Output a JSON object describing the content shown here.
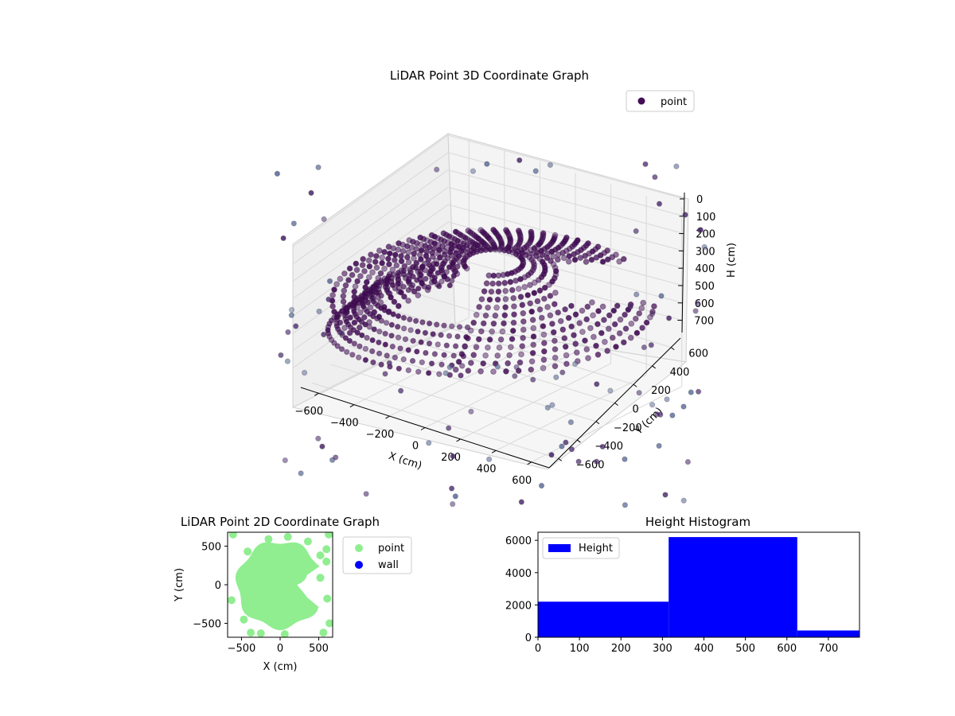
{
  "colors": {
    "scatter3d": "#440e57",
    "scatter3d_light": "#5d6d9a",
    "point2d": "#90ee90",
    "wall2d": "#0000ff",
    "hist": "#0000ff",
    "pane": "#f2f2f2",
    "grid": "#d9d9d9"
  },
  "chart_data": [
    {
      "type": "scatter",
      "title": "LiDAR Point 3D Coordinate Graph",
      "xlabel": "X (cm)",
      "ylabel": "Y (cm)",
      "zlabel": "H (cm)",
      "xticks": [
        "−600",
        "−400",
        "−200",
        "0",
        "200",
        "400",
        "600"
      ],
      "yticks": [
        "−600",
        "−400",
        "−200",
        "0",
        "200",
        "400",
        "600"
      ],
      "zticks": [
        "0",
        "100",
        "200",
        "300",
        "400",
        "500",
        "600",
        "700"
      ],
      "xlim": [
        -700,
        700
      ],
      "ylim": [
        -700,
        700
      ],
      "zlim": [
        0,
        780
      ],
      "zaxis_inverted": true,
      "legend": {
        "position": "top-right",
        "entries": [
          "point"
        ]
      },
      "series": [
        {
          "name": "point",
          "description": "dense dome of points with a notch toward +X, plus sparse outliers"
        }
      ]
    },
    {
      "type": "scatter",
      "title": "LiDAR Point 2D Coordinate Graph",
      "xlabel": "X (cm)",
      "ylabel": "Y (cm)",
      "xticks": [
        "−500",
        "0",
        "500"
      ],
      "yticks": [
        "−500",
        "0",
        "500"
      ],
      "xlim": [
        -680,
        680
      ],
      "ylim": [
        -680,
        680
      ],
      "legend": {
        "position": "outside-right",
        "entries": [
          "point",
          "wall"
        ]
      },
      "series": [
        {
          "name": "point",
          "points": [
            [
              -420,
              430
            ],
            [
              -150,
              590
            ],
            [
              100,
              620
            ],
            [
              360,
              560
            ],
            [
              520,
              380
            ],
            [
              600,
              300
            ],
            [
              630,
              650
            ],
            [
              -610,
              650
            ],
            [
              -630,
              -200
            ],
            [
              -470,
              -450
            ],
            [
              -380,
              -620
            ],
            [
              -250,
              -630
            ],
            [
              60,
              -640
            ],
            [
              560,
              -620
            ],
            [
              610,
              -180
            ],
            [
              520,
              90
            ],
            [
              600,
              460
            ],
            [
              640,
              -500
            ]
          ]
        },
        {
          "name": "wall",
          "points": []
        }
      ]
    },
    {
      "type": "bar",
      "title": "Height Histogram",
      "bins": [
        [
          0,
          315
        ],
        [
          315,
          625
        ],
        [
          625,
          775
        ]
      ],
      "values": [
        2200,
        6200,
        420
      ],
      "xticks": [
        "0",
        "100",
        "200",
        "300",
        "400",
        "500",
        "600",
        "700"
      ],
      "yticks": [
        "0",
        "2000",
        "4000",
        "6000"
      ],
      "xlim": [
        0,
        775
      ],
      "ylim": [
        0,
        6500
      ],
      "legend": {
        "position": "top-left",
        "entries": [
          "Height"
        ]
      },
      "series": [
        {
          "name": "Height",
          "values": [
            2200,
            6200,
            420
          ]
        }
      ]
    }
  ]
}
